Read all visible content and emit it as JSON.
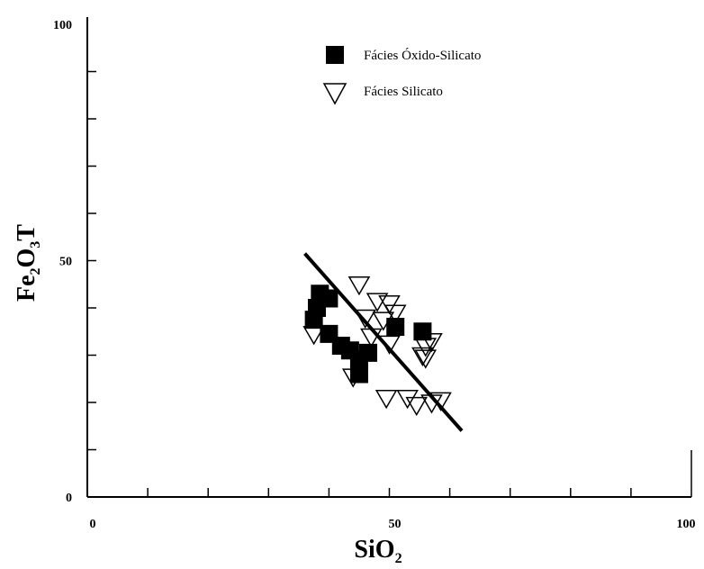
{
  "chart_data": {
    "type": "scatter",
    "xlabel": {
      "main": "SiO",
      "sub": "2"
    },
    "ylabel": {
      "part1": "Fe",
      "sub1": "2",
      "part2": "O",
      "sub2": "3",
      "part3": "T"
    },
    "xlim": [
      0,
      100
    ],
    "ylim": [
      0,
      100
    ],
    "x_ticks": [
      0,
      50,
      100
    ],
    "y_ticks": [
      0,
      50,
      100
    ],
    "grid": false,
    "legend_position": "top-center",
    "series": [
      {
        "name": "Fácies Óxido-Silicato",
        "marker": "filled-square",
        "color": "#000000",
        "points": [
          [
            37.5,
            37.5
          ],
          [
            38,
            40
          ],
          [
            38.5,
            43
          ],
          [
            40,
            42
          ],
          [
            40,
            34.5
          ],
          [
            42,
            32
          ],
          [
            43.5,
            31
          ],
          [
            45,
            26
          ],
          [
            45,
            29
          ],
          [
            46.5,
            30.5
          ],
          [
            51,
            36
          ],
          [
            55.5,
            35
          ]
        ]
      },
      {
        "name": "Fácies Silicato",
        "marker": "open-down-triangle",
        "color": "#000000",
        "points": [
          [
            37.5,
            34.5
          ],
          [
            44,
            25.5
          ],
          [
            45,
            45
          ],
          [
            46,
            38
          ],
          [
            47,
            34
          ],
          [
            48,
            41.5
          ],
          [
            49,
            37.5
          ],
          [
            50,
            41
          ],
          [
            50,
            32.5
          ],
          [
            51,
            39
          ],
          [
            49.5,
            21
          ],
          [
            53,
            21
          ],
          [
            54.5,
            19.5
          ],
          [
            55.5,
            30
          ],
          [
            56,
            29.5
          ],
          [
            56,
            32
          ],
          [
            57,
            20
          ],
          [
            57,
            33
          ],
          [
            58.5,
            20.5
          ]
        ]
      }
    ],
    "trend_line": {
      "x": [
        36,
        62
      ],
      "y": [
        51.5,
        14
      ]
    }
  }
}
